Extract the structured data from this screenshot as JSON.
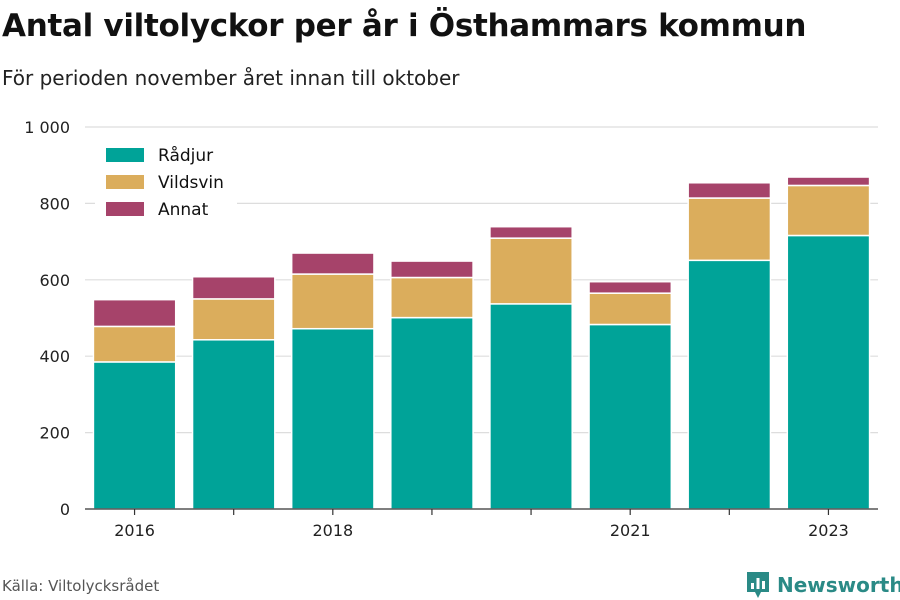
{
  "title": "Antal viltolyckor per år i Östhammars kommun",
  "subtitle": "För perioden november året innan till oktober",
  "source": "Källa: Viltolycksrådet",
  "brand": {
    "name": "Newsworthy",
    "icon": "bar-chart-logo-icon",
    "color": "#2a8a86"
  },
  "chart_data": {
    "type": "bar",
    "stacked": true,
    "categories": [
      "2016",
      "2017",
      "2018",
      "2019",
      "2020",
      "2021",
      "2022",
      "2023"
    ],
    "tick_labels": [
      "2016",
      "",
      "2018",
      "",
      "",
      "2021",
      "",
      "2023"
    ],
    "series": [
      {
        "name": "Rådjur",
        "color": "#00a398",
        "values": [
          385,
          443,
          472,
          501,
          537,
          483,
          651,
          716
        ]
      },
      {
        "name": "Vildsvin",
        "color": "#dbad5c",
        "values": [
          93,
          107,
          143,
          105,
          172,
          82,
          163,
          131
        ]
      },
      {
        "name": "Annat",
        "color": "#a6436a",
        "values": [
          70,
          58,
          55,
          43,
          30,
          30,
          40,
          22
        ]
      }
    ],
    "ylim": [
      0,
      1000
    ],
    "yticks": [
      0,
      200,
      400,
      600,
      800,
      1000
    ],
    "ytick_labels": [
      "0",
      "200",
      "400",
      "600",
      "800",
      "1 000"
    ],
    "grid": true,
    "legend": "top-left"
  }
}
